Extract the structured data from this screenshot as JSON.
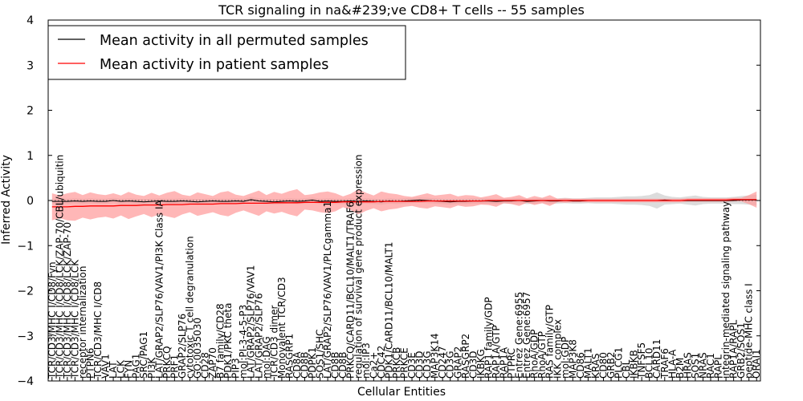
{
  "chart_data": {
    "type": "line",
    "title": "TCR signaling in na&#239;ve CD8+ T cells -- 55 samples",
    "xlabel": "Cellular Entities",
    "ylabel": "Inferred Activity",
    "ylim": [
      -4,
      4
    ],
    "yticks": [
      -4,
      -3,
      -2,
      -1,
      0,
      1,
      2,
      3,
      4
    ],
    "ytick_labels": [
      "−4",
      "−3",
      "−2",
      "−1",
      "0",
      "1",
      "2",
      "3",
      "4"
    ],
    "reference_line": 0,
    "legend_position": "top-left",
    "categories": [
      "TCR/CD3/MHC I/CD8/Fyn",
      "TCR/CD3/MHC I/CD8/LCK/ZAP-70/CBL/ubiquitin",
      "TCR/CD3/MHC I/CD8/LCK/ZAP-70",
      "TCR/CD3/MHC I/CD8/LCK",
      "receptor internalization",
      "PTPN6",
      "TCR/CD3/MHC I/CD8",
      "VAV1",
      "LAT",
      "LCK",
      "FYN",
      "PAG1",
      "SRC/PAG1",
      "PI3K",
      "LAT/GRAP2/SLP76/VAV1/PI3K Class IA",
      "PRKCQ",
      "PRF1",
      "GRAP2/SLP76",
      "cytotoxic T cell degranulation",
      "GO:0035030",
      "CD28",
      "ZAP70",
      "B7 family/CD28",
      "PDK1/PKC theta",
      "PIP3",
      "mol:PI-3-4-5-P3",
      "LAT/GRAP2/SLP76/VAV1",
      "LAT/GRAP2/SLP76",
      "mol:DAG",
      "TCR/CD3 dimer",
      "Monovalent TCR/CD3",
      "RASGRP1",
      "CD8A",
      "CD8B",
      "PDPK1",
      "SOS1/SHC",
      "LAT/GRAP2/SLP76/VAV1/PLCgamma1",
      "CD8B",
      "CD8B",
      "PRKCQ/CARD11/BCL10/MALT1/TRAF6",
      "regulation of survival gene product expression",
      "mol:IP3",
      "Ca2+",
      "CDC42",
      "PDK1/CARD11/BCL10/MALT1",
      "PRKCB",
      "PRKCE",
      "CD3E",
      "CD3D",
      "CD3G",
      "MAP3K14",
      "CD247",
      "CD3G",
      "GRAP2",
      "RASGRP2",
      "CD3D",
      "IKBKG",
      "RAP1 family/GDP",
      "RAP1A/GTP",
      "RAP1A",
      "PTPRC",
      "Entrez Gene:6955",
      "Entrez Gene:6957",
      "RhoA/GDP",
      "RhoA/GTP",
      "RAS family/GTP",
      "IKK complex",
      "mol:GDP",
      "MAP3K8",
      "CD86",
      "MALT1",
      "KRAS",
      "CD80",
      "GRB2",
      "PLCG1",
      "CBL",
      "IKBKB",
      "TNFSF5",
      "BCL10",
      "CARD11",
      "TRAF6",
      "HLA-A",
      "B2M",
      "HRAS",
      "SOS1",
      "NRAS",
      "RAC1",
      "RAPL",
      "integrin-mediated signaling pathway",
      "RAP1A/RAPL",
      "GRB2/SOS1",
      "peptide-MHC class I",
      "ORAI1"
    ],
    "series": [
      {
        "name": "Mean activity in all permuted samples",
        "color": "#000000",
        "band_color": "#d0d0d0",
        "values": [
          -0.02,
          -0.02,
          -0.02,
          -0.01,
          -0.02,
          -0.01,
          -0.02,
          -0.02,
          0.0,
          -0.02,
          -0.01,
          -0.02,
          -0.03,
          -0.02,
          -0.01,
          -0.02,
          -0.02,
          -0.01,
          -0.02,
          -0.03,
          -0.02,
          -0.01,
          -0.02,
          -0.02,
          -0.01,
          -0.02,
          0.02,
          -0.01,
          -0.02,
          -0.03,
          -0.02,
          -0.01,
          -0.02,
          -0.01,
          0.01,
          -0.02,
          -0.01,
          -0.02,
          -0.02,
          -0.01,
          -0.02,
          -0.01,
          -0.02,
          -0.03,
          -0.01,
          -0.02,
          -0.01,
          0.0,
          0.01,
          0.0,
          -0.01,
          -0.02,
          -0.03,
          -0.02,
          -0.02,
          -0.01,
          -0.01,
          -0.01,
          -0.02,
          -0.01,
          -0.01,
          0.0,
          -0.02,
          -0.01,
          0.0,
          -0.01,
          -0.01,
          0.0,
          -0.01,
          -0.01,
          0.0,
          0.0,
          0.0,
          0.0,
          0.0,
          0.0,
          0.0,
          0.0,
          0.0,
          0.0,
          0.01,
          0.0,
          0.0,
          0.0,
          0.0,
          0.0,
          0.0,
          0.0,
          0.0,
          0.0,
          0.01,
          0.01,
          0.01
        ],
        "band_halfwidth": [
          0.06,
          0.06,
          0.06,
          0.06,
          0.06,
          0.06,
          0.06,
          0.06,
          0.06,
          0.06,
          0.06,
          0.06,
          0.06,
          0.06,
          0.06,
          0.06,
          0.06,
          0.06,
          0.06,
          0.06,
          0.06,
          0.06,
          0.06,
          0.06,
          0.06,
          0.06,
          0.06,
          0.06,
          0.06,
          0.06,
          0.06,
          0.06,
          0.06,
          0.06,
          0.06,
          0.06,
          0.06,
          0.06,
          0.06,
          0.06,
          0.06,
          0.06,
          0.06,
          0.06,
          0.06,
          0.06,
          0.06,
          0.06,
          0.06,
          0.06,
          0.06,
          0.06,
          0.06,
          0.06,
          0.06,
          0.06,
          0.06,
          0.06,
          0.06,
          0.06,
          0.06,
          0.06,
          0.06,
          0.06,
          0.06,
          0.06,
          0.06,
          0.06,
          0.06,
          0.06,
          0.06,
          0.07,
          0.07,
          0.07,
          0.08,
          0.09,
          0.09,
          0.1,
          0.12,
          0.18,
          0.1,
          0.08,
          0.07,
          0.09,
          0.11,
          0.08,
          0.07,
          0.07,
          0.07,
          0.08,
          0.09,
          0.1,
          0.12
        ]
      },
      {
        "name": "Mean activity in patient samples",
        "color": "#ff0000",
        "band_color": "#ff9999",
        "values": [
          -0.14,
          -0.14,
          -0.14,
          -0.13,
          -0.13,
          -0.12,
          -0.12,
          -0.12,
          -0.12,
          -0.11,
          -0.11,
          -0.11,
          -0.1,
          -0.1,
          -0.1,
          -0.09,
          -0.09,
          -0.09,
          -0.08,
          -0.08,
          -0.08,
          -0.08,
          -0.07,
          -0.07,
          -0.07,
          -0.06,
          -0.06,
          -0.06,
          -0.06,
          -0.05,
          -0.05,
          -0.05,
          -0.05,
          -0.04,
          -0.04,
          -0.04,
          -0.04,
          -0.04,
          -0.03,
          -0.03,
          -0.03,
          -0.03,
          -0.03,
          -0.02,
          -0.02,
          -0.02,
          -0.02,
          -0.02,
          -0.02,
          -0.01,
          -0.01,
          -0.01,
          -0.01,
          -0.01,
          -0.01,
          -0.01,
          -0.01,
          0.0,
          0.0,
          0.0,
          0.0,
          0.0,
          0.0,
          0.0,
          0.0,
          0.0,
          0.0,
          0.0,
          0.0,
          0.0,
          0.0,
          0.0,
          0.0,
          0.0,
          0.0,
          0.0,
          0.0,
          0.0,
          0.0,
          0.0,
          0.0,
          0.0,
          0.0,
          0.01,
          0.01,
          0.01,
          0.01,
          0.01,
          0.01,
          0.02,
          0.02,
          0.02,
          0.02
        ],
        "band_halfwidth": [
          0.3,
          0.25,
          0.3,
          0.32,
          0.25,
          0.3,
          0.26,
          0.24,
          0.28,
          0.22,
          0.3,
          0.24,
          0.2,
          0.27,
          0.21,
          0.26,
          0.3,
          0.22,
          0.18,
          0.26,
          0.22,
          0.18,
          0.25,
          0.28,
          0.2,
          0.16,
          0.22,
          0.28,
          0.18,
          0.24,
          0.2,
          0.26,
          0.3,
          0.16,
          0.18,
          0.22,
          0.24,
          0.2,
          0.12,
          0.18,
          0.28,
          0.2,
          0.14,
          0.22,
          0.18,
          0.16,
          0.12,
          0.1,
          0.14,
          0.17,
          0.12,
          0.14,
          0.16,
          0.1,
          0.13,
          0.12,
          0.08,
          0.1,
          0.14,
          0.06,
          0.08,
          0.12,
          0.05,
          0.1,
          0.06,
          0.12,
          0.04,
          0.05,
          0.04,
          0.04,
          0.04,
          0.04,
          0.04,
          0.04,
          0.04,
          0.04,
          0.04,
          0.04,
          0.04,
          0.04,
          0.04,
          0.04,
          0.04,
          0.04,
          0.04,
          0.04,
          0.04,
          0.04,
          0.04,
          0.04,
          0.04,
          0.1,
          0.18
        ]
      }
    ]
  }
}
